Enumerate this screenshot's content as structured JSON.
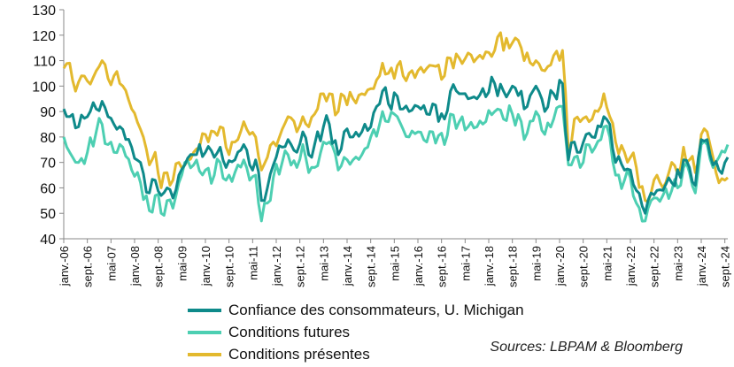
{
  "chart_data": {
    "type": "line",
    "title": "",
    "xlabel": "",
    "ylabel": "",
    "ylim": [
      40,
      130
    ],
    "yticks": [
      40,
      50,
      60,
      70,
      80,
      90,
      100,
      110,
      120,
      130
    ],
    "grid": false,
    "legend_position": "bottom",
    "x_start": "2006-01",
    "x_end": "2024-10",
    "x_tick_labels": [
      "janv.-06",
      "sept.-06",
      "mai-07",
      "janv.-08",
      "sept.-08",
      "mai-09",
      "janv.-10",
      "sept.-10",
      "mai-11",
      "janv.-12",
      "sept.-12",
      "mai-13",
      "janv.-14",
      "sept.-14",
      "mai-15",
      "janv.-16",
      "sept.-16",
      "mai-17",
      "janv.-18",
      "sept.-18",
      "mai-19",
      "janv.-20",
      "sept.-20",
      "mai-21",
      "janv.-22",
      "sept.-22",
      "mai-23",
      "janv.-24",
      "sept.-24"
    ],
    "series": [
      {
        "name": "Confiance des consommateurs, U. Michigan",
        "color": "#0e8a8a",
        "anchors": [
          [
            "2006-01",
            91
          ],
          [
            "2006-03",
            88
          ],
          [
            "2006-06",
            84
          ],
          [
            "2006-09",
            88
          ],
          [
            "2006-12",
            91
          ],
          [
            "2007-02",
            94
          ],
          [
            "2007-04",
            88
          ],
          [
            "2007-06",
            85
          ],
          [
            "2007-09",
            83
          ],
          [
            "2007-12",
            76
          ],
          [
            "2008-03",
            70
          ],
          [
            "2008-06",
            58
          ],
          [
            "2008-08",
            63
          ],
          [
            "2008-10",
            57
          ],
          [
            "2008-12",
            60
          ],
          [
            "2009-02",
            56
          ],
          [
            "2009-04",
            65
          ],
          [
            "2009-06",
            69
          ],
          [
            "2009-09",
            73
          ],
          [
            "2010-01",
            74
          ],
          [
            "2010-04",
            72
          ],
          [
            "2010-06",
            76
          ],
          [
            "2010-08",
            68
          ],
          [
            "2010-11",
            71
          ],
          [
            "2011-02",
            77
          ],
          [
            "2011-04",
            69
          ],
          [
            "2011-06",
            71
          ],
          [
            "2011-08",
            55
          ],
          [
            "2011-10",
            60
          ],
          [
            "2011-12",
            69
          ],
          [
            "2012-03",
            76
          ],
          [
            "2012-05",
            79
          ],
          [
            "2012-08",
            74
          ],
          [
            "2012-10",
            82
          ],
          [
            "2012-12",
            73
          ],
          [
            "2013-02",
            77
          ],
          [
            "2013-05",
            84
          ],
          [
            "2013-07",
            85
          ],
          [
            "2013-10",
            73
          ],
          [
            "2013-12",
            82
          ],
          [
            "2014-03",
            80
          ],
          [
            "2014-06",
            82
          ],
          [
            "2014-09",
            84
          ],
          [
            "2014-12",
            93
          ],
          [
            "2015-01",
            98
          ],
          [
            "2015-03",
            93
          ],
          [
            "2015-06",
            96
          ],
          [
            "2015-08",
            91
          ],
          [
            "2015-10",
            90
          ],
          [
            "2016-01",
            92
          ],
          [
            "2016-04",
            89
          ],
          [
            "2016-06",
            93
          ],
          [
            "2016-10",
            87
          ],
          [
            "2016-12",
            98
          ],
          [
            "2017-03",
            97
          ],
          [
            "2017-06",
            95
          ],
          [
            "2017-09",
            95
          ],
          [
            "2018-03",
            101
          ],
          [
            "2018-06",
            98
          ],
          [
            "2018-09",
            100
          ],
          [
            "2018-12",
            98
          ],
          [
            "2019-01",
            91
          ],
          [
            "2019-05",
            100
          ],
          [
            "2019-08",
            90
          ],
          [
            "2019-11",
            97
          ],
          [
            "2020-02",
            101
          ],
          [
            "2020-04",
            71
          ],
          [
            "2020-06",
            78
          ],
          [
            "2020-08",
            74
          ],
          [
            "2020-10",
            81
          ],
          [
            "2020-12",
            80
          ],
          [
            "2021-03",
            84
          ],
          [
            "2021-04",
            88
          ],
          [
            "2021-06",
            85
          ],
          [
            "2021-08",
            70
          ],
          [
            "2021-11",
            67
          ],
          [
            "2022-01",
            67
          ],
          [
            "2022-03",
            59
          ],
          [
            "2022-06",
            50
          ],
          [
            "2022-08",
            58
          ],
          [
            "2022-10",
            59
          ],
          [
            "2022-12",
            59
          ],
          [
            "2023-03",
            62
          ],
          [
            "2023-06",
            64
          ],
          [
            "2023-07",
            71
          ],
          [
            "2023-09",
            68
          ],
          [
            "2023-11",
            61
          ],
          [
            "2024-01",
            79
          ],
          [
            "2024-03",
            79
          ],
          [
            "2024-05",
            69
          ],
          [
            "2024-07",
            67
          ],
          [
            "2024-09",
            70
          ],
          [
            "2024-10",
            72
          ]
        ]
      },
      {
        "name": "Conditions futures",
        "color": "#4dcfb2",
        "anchors": [
          [
            "2006-01",
            80
          ],
          [
            "2006-03",
            74
          ],
          [
            "2006-06",
            70
          ],
          [
            "2006-09",
            74
          ],
          [
            "2006-12",
            82
          ],
          [
            "2007-02",
            85
          ],
          [
            "2007-04",
            77
          ],
          [
            "2007-06",
            74
          ],
          [
            "2007-09",
            76
          ],
          [
            "2007-12",
            67
          ],
          [
            "2008-03",
            62
          ],
          [
            "2008-06",
            51
          ],
          [
            "2008-08",
            57
          ],
          [
            "2008-10",
            50
          ],
          [
            "2008-12",
            55
          ],
          [
            "2009-02",
            52
          ],
          [
            "2009-04",
            62
          ],
          [
            "2009-06",
            70
          ],
          [
            "2009-09",
            69
          ],
          [
            "2010-01",
            67
          ],
          [
            "2010-04",
            65
          ],
          [
            "2010-06",
            70
          ],
          [
            "2010-08",
            63
          ],
          [
            "2010-11",
            66
          ],
          [
            "2011-02",
            71
          ],
          [
            "2011-04",
            63
          ],
          [
            "2011-06",
            65
          ],
          [
            "2011-08",
            47
          ],
          [
            "2011-10",
            54
          ],
          [
            "2011-12",
            64
          ],
          [
            "2012-03",
            70
          ],
          [
            "2012-05",
            73
          ],
          [
            "2012-08",
            68
          ],
          [
            "2012-10",
            77
          ],
          [
            "2012-12",
            66
          ],
          [
            "2013-02",
            68
          ],
          [
            "2013-05",
            78
          ],
          [
            "2013-07",
            78
          ],
          [
            "2013-10",
            67
          ],
          [
            "2013-12",
            72
          ],
          [
            "2014-03",
            71
          ],
          [
            "2014-06",
            73
          ],
          [
            "2014-09",
            80
          ],
          [
            "2014-12",
            85
          ],
          [
            "2015-01",
            90
          ],
          [
            "2015-03",
            86
          ],
          [
            "2015-06",
            88
          ],
          [
            "2015-08",
            83
          ],
          [
            "2015-10",
            80
          ],
          [
            "2016-01",
            82
          ],
          [
            "2016-04",
            78
          ],
          [
            "2016-06",
            82
          ],
          [
            "2016-10",
            77
          ],
          [
            "2016-12",
            89
          ],
          [
            "2017-03",
            86
          ],
          [
            "2017-06",
            84
          ],
          [
            "2017-09",
            84
          ],
          [
            "2018-03",
            90
          ],
          [
            "2018-06",
            87
          ],
          [
            "2018-09",
            89
          ],
          [
            "2018-12",
            86
          ],
          [
            "2019-01",
            79
          ],
          [
            "2019-05",
            90
          ],
          [
            "2019-08",
            81
          ],
          [
            "2019-11",
            87
          ],
          [
            "2020-02",
            92
          ],
          [
            "2020-04",
            69
          ],
          [
            "2020-06",
            72
          ],
          [
            "2020-08",
            68
          ],
          [
            "2020-10",
            77
          ],
          [
            "2020-12",
            74
          ],
          [
            "2021-03",
            79
          ],
          [
            "2021-04",
            84
          ],
          [
            "2021-06",
            80
          ],
          [
            "2021-08",
            65
          ],
          [
            "2021-11",
            63
          ],
          [
            "2022-01",
            64
          ],
          [
            "2022-03",
            54
          ],
          [
            "2022-06",
            47
          ],
          [
            "2022-08",
            55
          ],
          [
            "2022-10",
            56
          ],
          [
            "2022-12",
            57
          ],
          [
            "2023-03",
            59
          ],
          [
            "2023-06",
            61
          ],
          [
            "2023-07",
            68
          ],
          [
            "2023-09",
            66
          ],
          [
            "2023-11",
            58
          ],
          [
            "2024-01",
            77
          ],
          [
            "2024-03",
            77
          ],
          [
            "2024-05",
            68
          ],
          [
            "2024-07",
            72
          ],
          [
            "2024-09",
            74
          ],
          [
            "2024-10",
            77
          ]
        ]
      },
      {
        "name": "Conditions présentes",
        "color": "#e3b92e",
        "anchors": [
          [
            "2006-01",
            107
          ],
          [
            "2006-03",
            109
          ],
          [
            "2006-05",
            98
          ],
          [
            "2006-07",
            104
          ],
          [
            "2006-09",
            102
          ],
          [
            "2006-12",
            106
          ],
          [
            "2007-02",
            110
          ],
          [
            "2007-04",
            103
          ],
          [
            "2007-06",
            104
          ],
          [
            "2007-09",
            100
          ],
          [
            "2007-12",
            91
          ],
          [
            "2008-03",
            83
          ],
          [
            "2008-06",
            69
          ],
          [
            "2008-08",
            74
          ],
          [
            "2008-10",
            60
          ],
          [
            "2008-12",
            66
          ],
          [
            "2009-02",
            63
          ],
          [
            "2009-04",
            70
          ],
          [
            "2009-06",
            69
          ],
          [
            "2009-09",
            74
          ],
          [
            "2010-01",
            81
          ],
          [
            "2010-04",
            82
          ],
          [
            "2010-06",
            84
          ],
          [
            "2010-08",
            76
          ],
          [
            "2010-11",
            78
          ],
          [
            "2011-02",
            86
          ],
          [
            "2011-04",
            81
          ],
          [
            "2011-06",
            80
          ],
          [
            "2011-08",
            67
          ],
          [
            "2011-10",
            72
          ],
          [
            "2011-12",
            78
          ],
          [
            "2012-03",
            83
          ],
          [
            "2012-05",
            88
          ],
          [
            "2012-08",
            82
          ],
          [
            "2012-10",
            88
          ],
          [
            "2012-12",
            84
          ],
          [
            "2013-02",
            89
          ],
          [
            "2013-05",
            97
          ],
          [
            "2013-07",
            97
          ],
          [
            "2013-10",
            90
          ],
          [
            "2013-12",
            96
          ],
          [
            "2014-03",
            95
          ],
          [
            "2014-06",
            97
          ],
          [
            "2014-09",
            99
          ],
          [
            "2014-12",
            104
          ],
          [
            "2015-01",
            109
          ],
          [
            "2015-03",
            105
          ],
          [
            "2015-06",
            108
          ],
          [
            "2015-08",
            104
          ],
          [
            "2015-10",
            105
          ],
          [
            "2016-01",
            106
          ],
          [
            "2016-04",
            107
          ],
          [
            "2016-06",
            108
          ],
          [
            "2016-10",
            104
          ],
          [
            "2016-12",
            111
          ],
          [
            "2017-03",
            111
          ],
          [
            "2017-06",
            113
          ],
          [
            "2017-09",
            111
          ],
          [
            "2018-03",
            114
          ],
          [
            "2018-05",
            121
          ],
          [
            "2018-06",
            114
          ],
          [
            "2018-09",
            117
          ],
          [
            "2018-12",
            115
          ],
          [
            "2019-01",
            110
          ],
          [
            "2019-05",
            110
          ],
          [
            "2019-08",
            106
          ],
          [
            "2019-11",
            112
          ],
          [
            "2020-02",
            114
          ],
          [
            "2020-04",
            74
          ],
          [
            "2020-06",
            87
          ],
          [
            "2020-08",
            86
          ],
          [
            "2020-10",
            88
          ],
          [
            "2020-12",
            87
          ],
          [
            "2021-03",
            92
          ],
          [
            "2021-04",
            97
          ],
          [
            "2021-06",
            88
          ],
          [
            "2021-08",
            78
          ],
          [
            "2021-11",
            74
          ],
          [
            "2022-01",
            72
          ],
          [
            "2022-03",
            68
          ],
          [
            "2022-06",
            55
          ],
          [
            "2022-08",
            58
          ],
          [
            "2022-10",
            65
          ],
          [
            "2022-12",
            60
          ],
          [
            "2023-03",
            70
          ],
          [
            "2023-06",
            68
          ],
          [
            "2023-07",
            76
          ],
          [
            "2023-09",
            71
          ],
          [
            "2023-11",
            66
          ],
          [
            "2024-01",
            81
          ],
          [
            "2024-03",
            82
          ],
          [
            "2024-05",
            72
          ],
          [
            "2024-07",
            62
          ],
          [
            "2024-09",
            63
          ],
          [
            "2024-10",
            64
          ]
        ]
      }
    ]
  },
  "legend": [
    {
      "label": "Confiance des consommateurs, U. Michigan",
      "color": "#0e8a8a"
    },
    {
      "label": "Conditions futures",
      "color": "#4dcfb2"
    },
    {
      "label": "Conditions présentes",
      "color": "#e3b92e"
    }
  ],
  "source": "Sources: LBPAM & Bloomberg"
}
